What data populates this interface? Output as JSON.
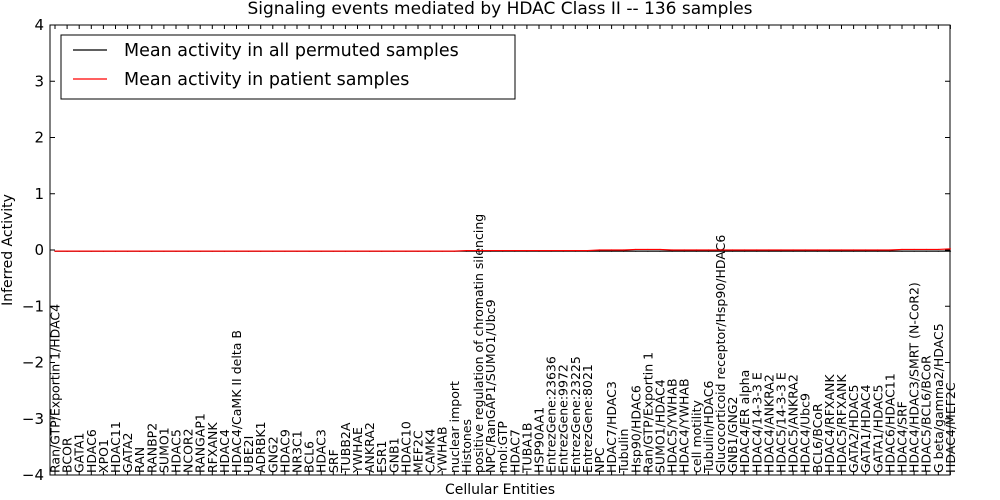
{
  "chart_data": {
    "type": "line",
    "title": "Signaling events mediated by HDAC Class II -- 136 samples",
    "xlabel": "Cellular Entities",
    "ylabel": "Inferred Activity",
    "ylim": [
      -4,
      4
    ],
    "yticks": [
      -4,
      -3,
      -2,
      -1,
      0,
      1,
      2,
      3,
      4
    ],
    "ytick_labels": [
      "−4",
      "−3",
      "−2",
      "−1",
      "0",
      "1",
      "2",
      "3",
      "4"
    ],
    "grid": false,
    "legend_position": "top-left",
    "categories": [
      "Ran/GTP/Exportin 1/HDAC4",
      "BCOR",
      "GATA1",
      "HDAC6",
      "XPO1",
      "HDAC11",
      "GATA2",
      "RAN",
      "RANBP2",
      "SUMO1",
      "HDAC5",
      "NCOR2",
      "RANGAP1",
      "RFXANK",
      "HDAC4",
      "HDAC4/CaMK II delta B",
      "UBE2I",
      "ADRBK1",
      "GNG2",
      "HDAC9",
      "NR3C1",
      "BCL6",
      "HDAC3",
      "SRF",
      "TUBB2A",
      "YWHAE",
      "ANKRA2",
      "ESR1",
      "GNB1",
      "HDAC10",
      "MEF2C",
      "CAMK4",
      "YWHAB",
      "nuclear import",
      "Histones",
      "positive regulation of chromatin silencing",
      "NPC/RanGAP1/SUMO1/Ubc9",
      "mol:GTP",
      "HDAC7",
      "TUBA1B",
      "HSP90AA1",
      "EntrezGene:23636",
      "EntrezGene:9972",
      "EntrezGene:23225",
      "EntrezGene:8021",
      "NPC",
      "HDAC7/HDAC3",
      "Tubulin",
      "Hsp90/HDAC6",
      "Ran/GTP/Exportin 1",
      "SUMO1/HDAC4",
      "HDAC5/YWHAB",
      "HDAC4/YWHAB",
      "cell motility",
      "Tubulin/HDAC6",
      "Glucocorticoid receptor/Hsp90/HDAC6",
      "GNB1/GNG2",
      "HDAC4/ER alpha",
      "HDAC4/14-3-3 E",
      "HDAC4/ANKRA2",
      "HDAC5/14-3-3 E",
      "HDAC5/ANKRA2",
      "HDAC4/Ubc9",
      "BCL6/BCoR",
      "HDAC4/RFXANK",
      "HDAC5/RFXANK",
      "GATA2/HDAC5",
      "GATA1/HDAC4",
      "GATA1/HDAC5",
      "HDAC6/HDAC11",
      "HDAC4/SRF",
      "HDAC4/HDAC3/SMRT (N-CoR2)",
      "HDAC5/BCL6/BCoR",
      "G beta/gamma2/HDAC5",
      "HDAC4/MEF2C"
    ],
    "series": [
      {
        "name": "Mean activity in all permuted samples",
        "color": "#000000",
        "values": [
          -0.02,
          -0.02,
          -0.02,
          -0.02,
          -0.02,
          -0.02,
          -0.02,
          -0.02,
          -0.02,
          -0.02,
          -0.02,
          -0.02,
          -0.02,
          -0.02,
          -0.02,
          -0.02,
          -0.02,
          -0.02,
          -0.02,
          -0.02,
          -0.02,
          -0.02,
          -0.02,
          -0.02,
          -0.02,
          -0.02,
          -0.02,
          -0.02,
          -0.02,
          -0.02,
          -0.02,
          -0.02,
          -0.02,
          -0.02,
          -0.02,
          -0.02,
          -0.02,
          -0.02,
          -0.02,
          -0.02,
          -0.02,
          -0.02,
          -0.02,
          -0.02,
          -0.02,
          -0.02,
          -0.02,
          -0.02,
          -0.02,
          -0.02,
          -0.02,
          -0.02,
          -0.02,
          -0.02,
          -0.02,
          -0.02,
          -0.02,
          -0.02,
          -0.02,
          -0.02,
          -0.02,
          -0.02,
          -0.02,
          -0.02,
          -0.02,
          -0.02,
          -0.02,
          -0.02,
          -0.02,
          -0.02,
          -0.02,
          -0.02,
          -0.02,
          -0.02,
          -0.02
        ]
      },
      {
        "name": "Mean activity in patient samples",
        "color": "#ff0000",
        "values": [
          -0.02,
          -0.02,
          -0.02,
          -0.02,
          -0.02,
          -0.02,
          -0.02,
          -0.02,
          -0.02,
          -0.02,
          -0.02,
          -0.02,
          -0.02,
          -0.02,
          -0.02,
          -0.02,
          -0.02,
          -0.02,
          -0.02,
          -0.02,
          -0.02,
          -0.02,
          -0.02,
          -0.02,
          -0.02,
          -0.02,
          -0.02,
          -0.02,
          -0.02,
          -0.02,
          -0.02,
          -0.02,
          -0.02,
          -0.02,
          -0.01,
          -0.01,
          -0.01,
          -0.01,
          -0.01,
          -0.01,
          -0.01,
          -0.01,
          -0.01,
          -0.01,
          -0.01,
          0.0,
          0.0,
          0.0,
          0.01,
          0.01,
          0.01,
          0.0,
          0.0,
          0.0,
          0.0,
          0.0,
          0.0,
          0.0,
          0.0,
          0.0,
          0.0,
          0.0,
          0.0,
          0.0,
          0.0,
          0.0,
          0.0,
          0.0,
          0.0,
          0.0,
          0.01,
          0.01,
          0.01,
          0.01,
          0.02
        ]
      }
    ]
  }
}
